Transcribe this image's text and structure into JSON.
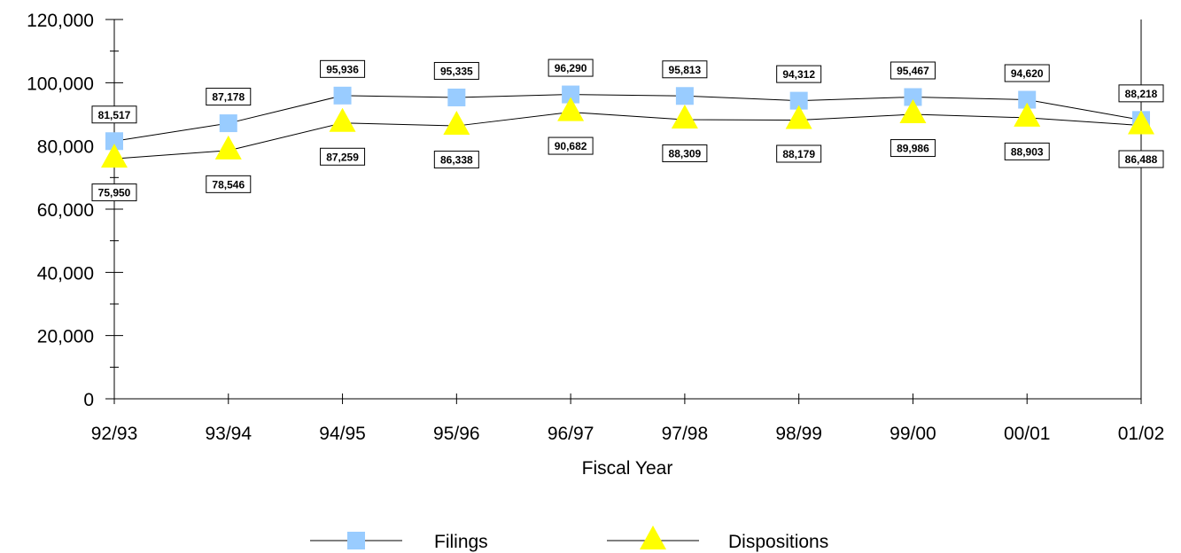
{
  "chart_data": {
    "type": "line",
    "title": "",
    "xlabel": "Fiscal Year",
    "ylabel": "",
    "categories": [
      "92/93",
      "93/94",
      "94/95",
      "95/96",
      "96/97",
      "97/98",
      "98/99",
      "99/00",
      "00/01",
      "01/02"
    ],
    "ylim": [
      0,
      120000
    ],
    "y_ticks": [
      "0",
      "20,000",
      "40,000",
      "60,000",
      "80,000",
      "100,000",
      "120,000"
    ],
    "grid": false,
    "legend_position": "bottom",
    "series": [
      {
        "name": "Filings",
        "marker": "square",
        "color": "#99ccff",
        "values": [
          81517,
          87178,
          95936,
          95335,
          96290,
          95813,
          94312,
          95467,
          94620,
          88218
        ],
        "labels": [
          "81,517",
          "87,178",
          "95,936",
          "95,335",
          "96,290",
          "95,813",
          "94,312",
          "95,467",
          "94,620",
          "88,218"
        ]
      },
      {
        "name": "Dispositions",
        "marker": "triangle",
        "color": "#ffff00",
        "values": [
          75950,
          78546,
          87259,
          86338,
          90682,
          88309,
          88179,
          89986,
          88903,
          86488
        ],
        "labels": [
          "75,950",
          "78,546",
          "87,259",
          "86,338",
          "90,682",
          "88,309",
          "88,179",
          "89,986",
          "88,903",
          "86,488"
        ]
      }
    ]
  }
}
